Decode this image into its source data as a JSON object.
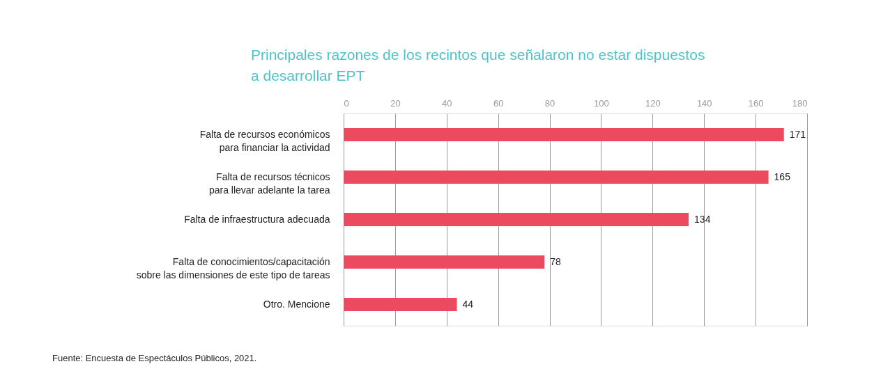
{
  "chart_data": {
    "type": "bar",
    "orientation": "horizontal",
    "title": "Principales razones de los recintos que señalaron no estar dispuestos\na desarrollar EPT",
    "categories": [
      "Falta de recursos económicos\npara financiar la actividad",
      "Falta de recursos técnicos\npara llevar adelante la tarea",
      "Falta de infraestructura adecuada",
      "Falta de conocimientos/capacitación\nsobre las dimensiones de este tipo de tareas",
      "Otro. Mencione"
    ],
    "values": [
      171,
      165,
      134,
      78,
      44
    ],
    "color": "#ec4a5e",
    "xlim": [
      0,
      180
    ],
    "xticks": [
      0,
      20,
      40,
      60,
      80,
      100,
      120,
      140,
      160,
      180
    ],
    "grid": "x",
    "data_labels": true,
    "annotations": [
      "Fuente: Encuesta de Espectáculos Públicos, 2021."
    ]
  }
}
